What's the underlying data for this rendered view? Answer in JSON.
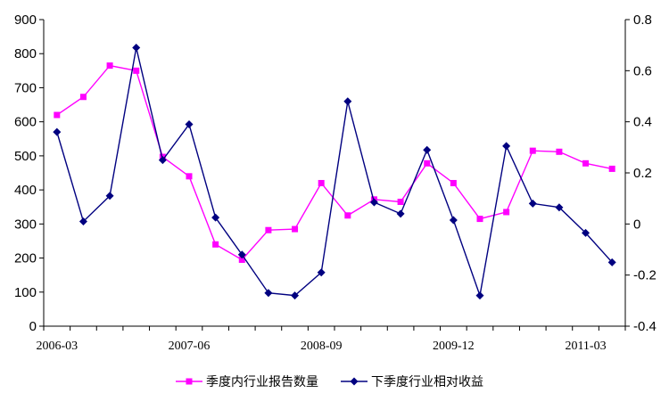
{
  "chart_data": {
    "type": "line",
    "x": [
      "2006-03",
      "2006-06",
      "2006-09",
      "2006-12",
      "2007-03",
      "2007-06",
      "2007-09",
      "2007-12",
      "2008-03",
      "2008-06",
      "2008-09",
      "2008-12",
      "2009-03",
      "2009-06",
      "2009-09",
      "2009-12",
      "2010-03",
      "2010-06",
      "2010-09",
      "2010-12",
      "2011-03",
      "2011-06"
    ],
    "x_tick_labels": [
      "2006-03",
      "2007-06",
      "2008-09",
      "2009-12",
      "2011-03"
    ],
    "x_tick_indices": [
      0,
      5,
      10,
      15,
      20
    ],
    "left_axis": {
      "ylim": [
        0,
        900
      ],
      "ticks": [
        "0",
        "100",
        "200",
        "300",
        "400",
        "500",
        "600",
        "700",
        "800",
        "900"
      ]
    },
    "right_axis": {
      "ylim": [
        -0.4,
        0.8
      ],
      "ticks": [
        "-0.4",
        "-0.2",
        "0",
        "0.2",
        "0.4",
        "0.6",
        "0.8"
      ]
    },
    "grid": false,
    "legend_position": "bottom-center",
    "series": [
      {
        "name": "季度内行业报告数量",
        "axis": "left",
        "color": "#ff00ff",
        "marker": "square",
        "values": [
          620,
          673,
          765,
          750,
          497,
          440,
          240,
          195,
          282,
          285,
          420,
          325,
          372,
          365,
          478,
          420,
          315,
          335,
          515,
          512,
          478,
          462
        ]
      },
      {
        "name": "下季度行业相对收益",
        "axis": "right",
        "color": "#000080",
        "marker": "diamond",
        "values": [
          0.36,
          0.01,
          0.11,
          0.69,
          0.25,
          0.39,
          0.025,
          -0.12,
          -0.27,
          -0.28,
          -0.19,
          0.48,
          0.085,
          0.04,
          0.29,
          0.015,
          -0.28,
          0.305,
          0.08,
          0.065,
          -0.035,
          -0.15
        ]
      }
    ]
  }
}
